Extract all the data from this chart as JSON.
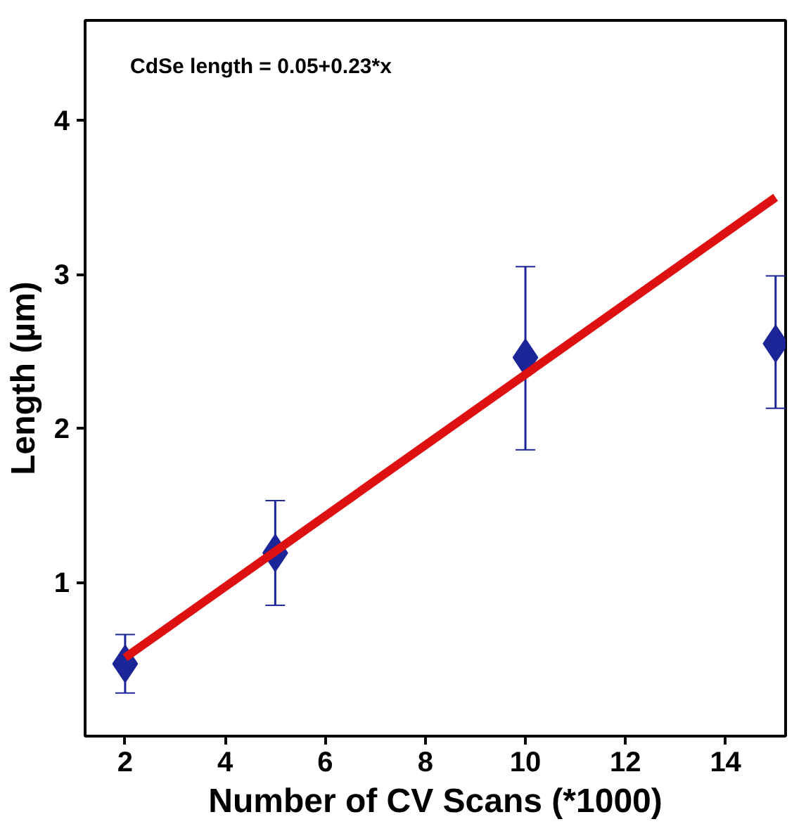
{
  "chart_data": {
    "type": "scatter",
    "xlabel": "Number of CV Scans (*1000)",
    "ylabel": "Length (µm)",
    "annotations": [
      "CdSe length = 0.05+0.23*x"
    ],
    "x": [
      2,
      5,
      10,
      15
    ],
    "series": [
      {
        "color": "#1c2597",
        "values": [
          0.47,
          1.19,
          2.46,
          2.55
        ],
        "errors": [
          [
            0.28,
            0.66
          ],
          [
            0.85,
            1.53
          ],
          [
            1.86,
            3.05
          ],
          [
            2.13,
            2.99
          ]
        ],
        "marker": "diamond"
      },
      {
        "type": "line",
        "color": "#dd1111",
        "x": [
          2,
          15
        ],
        "values": [
          0.51,
          3.5
        ],
        "line_style": "solid"
      }
    ],
    "xlim": [
      1.2,
      15.2
    ],
    "ylim": [
      0,
      4.65
    ],
    "xticks": [
      2,
      4,
      6,
      8,
      10,
      12,
      14
    ],
    "yticks": [
      1,
      2,
      3,
      4
    ],
    "grid": false
  }
}
